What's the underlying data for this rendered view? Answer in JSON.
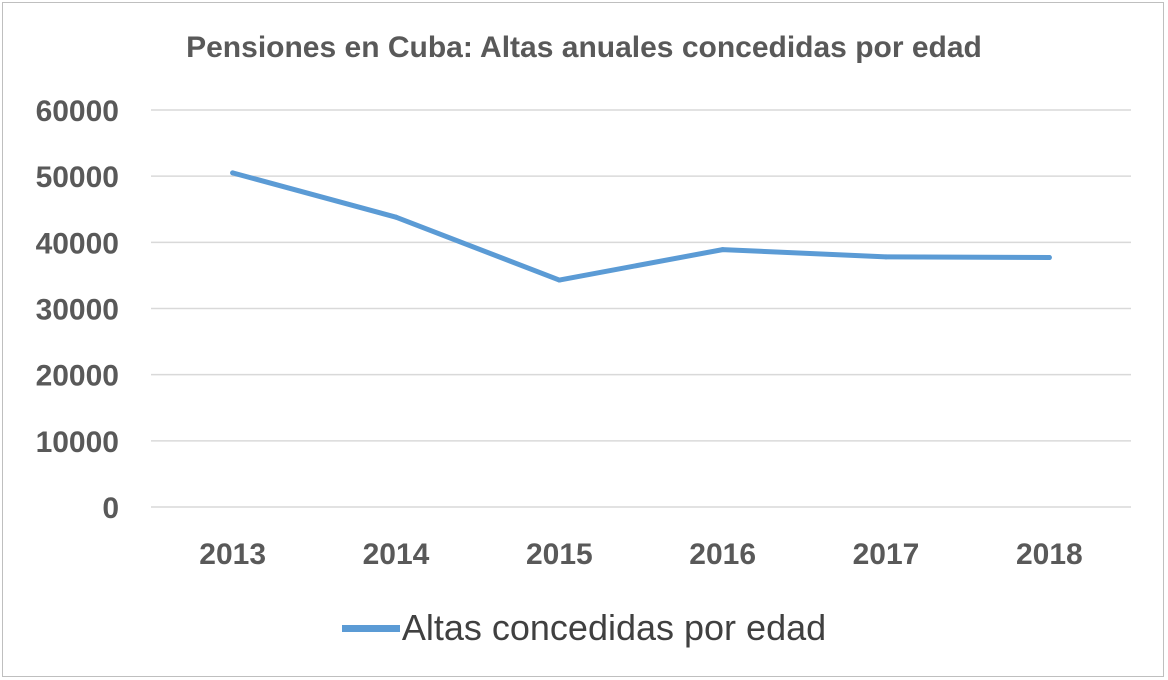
{
  "chart_data": {
    "type": "line",
    "title": "Pensiones en Cuba: Altas anuales concedidas por edad",
    "xlabel": "",
    "ylabel": "",
    "categories": [
      "2013",
      "2014",
      "2015",
      "2016",
      "2017",
      "2018"
    ],
    "series": [
      {
        "name": "Altas concedidas por edad",
        "values": [
          50500,
          43800,
          34300,
          38900,
          37800,
          37700
        ],
        "color": "#5b9bd5"
      }
    ],
    "ylim": [
      0,
      60000
    ],
    "yticks": [
      "0",
      "10000",
      "20000",
      "30000",
      "40000",
      "50000",
      "60000"
    ],
    "grid": true,
    "legend": "bottom"
  }
}
